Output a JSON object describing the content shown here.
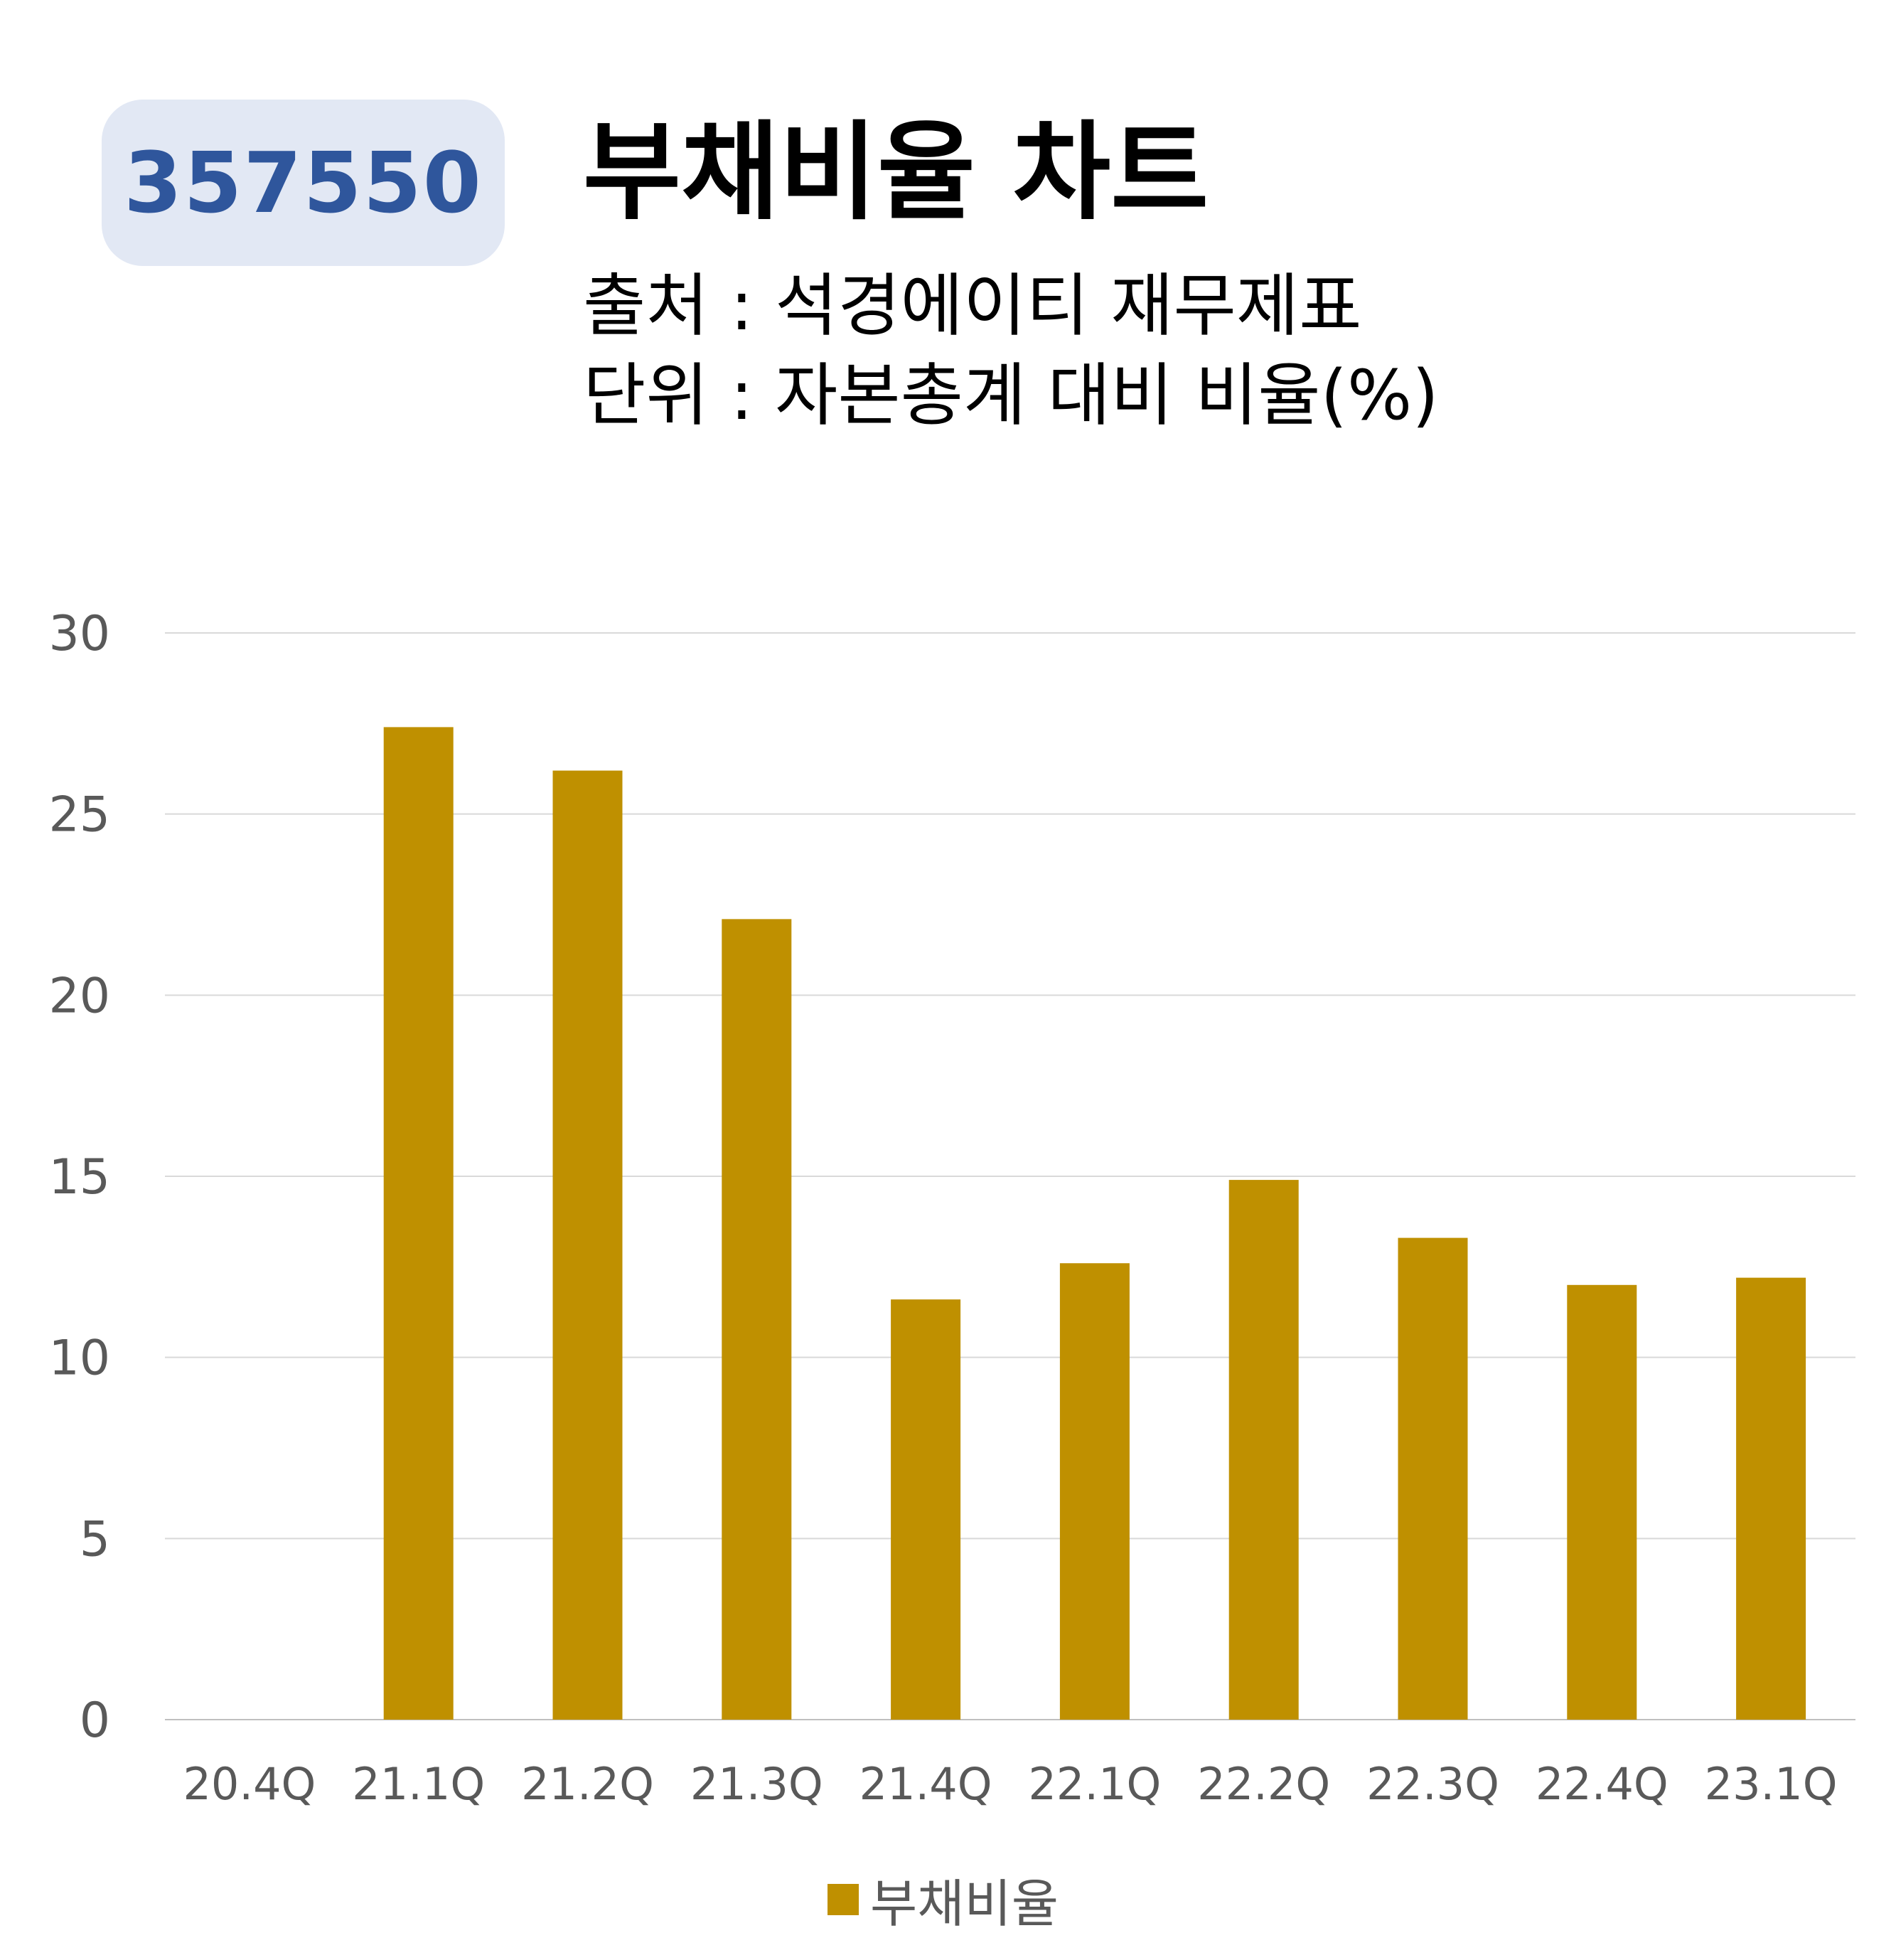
{
  "header": {
    "ticker": "357550",
    "title": "부채비율 차트",
    "source": "출처 : 석경에이티 재무제표",
    "unit": "단위 : 자본총계 대비 비율(%)"
  },
  "colors": {
    "bar": "#bf9000",
    "grid": "#d9d9d9",
    "badge_bg": "#e2e8f4",
    "badge_text": "#2f569c"
  },
  "chart_data": {
    "type": "bar",
    "title": "부채비율 차트",
    "categories": [
      "20.4Q",
      "21.1Q",
      "21.2Q",
      "21.3Q",
      "21.4Q",
      "22.1Q",
      "22.2Q",
      "22.3Q",
      "22.4Q",
      "23.1Q"
    ],
    "series": [
      {
        "name": "부채비율",
        "values": [
          0,
          27.4,
          26.2,
          22.1,
          11.6,
          12.6,
          14.9,
          13.3,
          12.0,
          12.2
        ]
      }
    ],
    "ylim": [
      0,
      30
    ],
    "yticks": [
      0,
      5,
      10,
      15,
      20,
      25,
      30
    ],
    "grid": true,
    "legend": "bottom"
  }
}
